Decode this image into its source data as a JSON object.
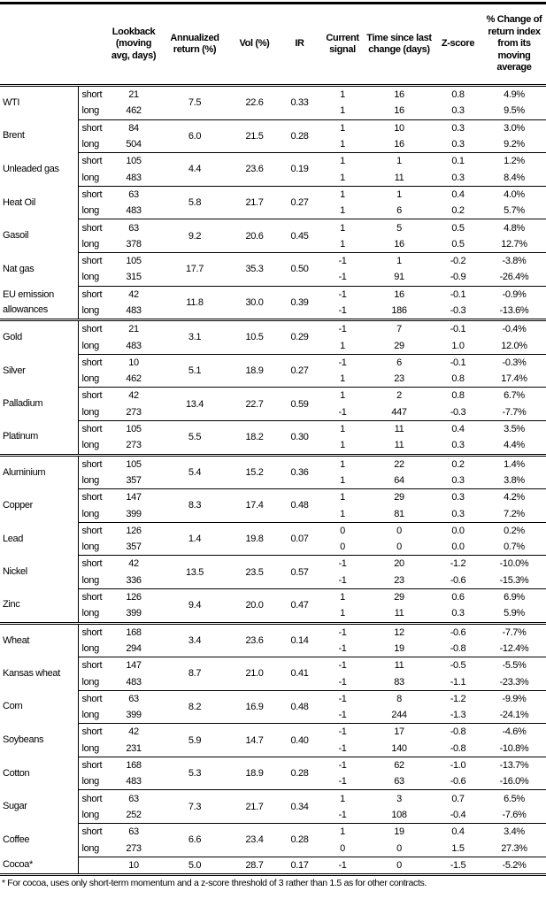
{
  "headers": [
    "",
    "",
    "Lookback (moving avg, days)",
    "Annualized return (%)",
    "Vol (%)",
    "IR",
    "Current signal",
    "Time since last change (days)",
    "Z-score",
    "% Change of return index from its moving average"
  ],
  "groups": [
    [
      {
        "name": "WTI",
        "rows": [
          {
            "type": "short",
            "lookback": "21",
            "signal": "1",
            "time": "16",
            "z": "0.8",
            "pct": "4.9%"
          },
          {
            "type": "long",
            "lookback": "462",
            "signal": "1",
            "time": "16",
            "z": "0.3",
            "pct": "9.5%"
          }
        ],
        "ann": "7.5",
        "vol": "22.6",
        "ir": "0.33"
      },
      {
        "name": "Brent",
        "rows": [
          {
            "type": "short",
            "lookback": "84",
            "signal": "1",
            "time": "10",
            "z": "0.3",
            "pct": "3.0%"
          },
          {
            "type": "long",
            "lookback": "504",
            "signal": "1",
            "time": "16",
            "z": "0.3",
            "pct": "9.2%"
          }
        ],
        "ann": "6.0",
        "vol": "21.5",
        "ir": "0.28"
      },
      {
        "name": "Unleaded gas",
        "rows": [
          {
            "type": "short",
            "lookback": "105",
            "signal": "1",
            "time": "1",
            "z": "0.1",
            "pct": "1.2%"
          },
          {
            "type": "long",
            "lookback": "483",
            "signal": "1",
            "time": "11",
            "z": "0.3",
            "pct": "8.4%"
          }
        ],
        "ann": "4.4",
        "vol": "23.6",
        "ir": "0.19"
      },
      {
        "name": "Heat Oil",
        "rows": [
          {
            "type": "short",
            "lookback": "63",
            "signal": "1",
            "time": "1",
            "z": "0.4",
            "pct": "4.0%"
          },
          {
            "type": "long",
            "lookback": "483",
            "signal": "1",
            "time": "6",
            "z": "0.2",
            "pct": "5.7%"
          }
        ],
        "ann": "5.8",
        "vol": "21.7",
        "ir": "0.27"
      },
      {
        "name": "Gasoil",
        "rows": [
          {
            "type": "short",
            "lookback": "63",
            "signal": "1",
            "time": "5",
            "z": "0.5",
            "pct": "4.8%"
          },
          {
            "type": "long",
            "lookback": "378",
            "signal": "1",
            "time": "16",
            "z": "0.5",
            "pct": "12.7%"
          }
        ],
        "ann": "9.2",
        "vol": "20.6",
        "ir": "0.45"
      },
      {
        "name": "Nat gas",
        "rows": [
          {
            "type": "short",
            "lookback": "105",
            "signal": "-1",
            "time": "1",
            "z": "-0.2",
            "pct": "-3.8%"
          },
          {
            "type": "long",
            "lookback": "315",
            "signal": "-1",
            "time": "91",
            "z": "-0.9",
            "pct": "-26.4%"
          }
        ],
        "ann": "17.7",
        "vol": "35.3",
        "ir": "0.50"
      },
      {
        "name": "EU emission allowances",
        "rows": [
          {
            "type": "short",
            "lookback": "42",
            "signal": "-1",
            "time": "16",
            "z": "-0.1",
            "pct": "-0.9%"
          },
          {
            "type": "long",
            "lookback": "483",
            "signal": "-1",
            "time": "186",
            "z": "-0.3",
            "pct": "-13.6%"
          }
        ],
        "ann": "11.8",
        "vol": "30.0",
        "ir": "0.39"
      }
    ],
    [
      {
        "name": "Gold",
        "rows": [
          {
            "type": "short",
            "lookback": "21",
            "signal": "-1",
            "time": "7",
            "z": "-0.1",
            "pct": "-0.4%"
          },
          {
            "type": "long",
            "lookback": "483",
            "signal": "1",
            "time": "29",
            "z": "1.0",
            "pct": "12.0%"
          }
        ],
        "ann": "3.1",
        "vol": "10.5",
        "ir": "0.29"
      },
      {
        "name": "Silver",
        "rows": [
          {
            "type": "short",
            "lookback": "10",
            "signal": "-1",
            "time": "6",
            "z": "-0.1",
            "pct": "-0.3%"
          },
          {
            "type": "long",
            "lookback": "462",
            "signal": "1",
            "time": "23",
            "z": "0.8",
            "pct": "17.4%"
          }
        ],
        "ann": "5.1",
        "vol": "18.9",
        "ir": "0.27"
      },
      {
        "name": "Palladium",
        "rows": [
          {
            "type": "short",
            "lookback": "42",
            "signal": "1",
            "time": "2",
            "z": "0.8",
            "pct": "6.7%"
          },
          {
            "type": "long",
            "lookback": "273",
            "signal": "-1",
            "time": "447",
            "z": "-0.3",
            "pct": "-7.7%"
          }
        ],
        "ann": "13.4",
        "vol": "22.7",
        "ir": "0.59"
      },
      {
        "name": "Platinum",
        "rows": [
          {
            "type": "short",
            "lookback": "105",
            "signal": "1",
            "time": "11",
            "z": "0.4",
            "pct": "3.5%"
          },
          {
            "type": "long",
            "lookback": "273",
            "signal": "1",
            "time": "11",
            "z": "0.3",
            "pct": "4.4%"
          }
        ],
        "ann": "5.5",
        "vol": "18.2",
        "ir": "0.30"
      }
    ],
    [
      {
        "name": "Aluminium",
        "rows": [
          {
            "type": "short",
            "lookback": "105",
            "signal": "1",
            "time": "22",
            "z": "0.2",
            "pct": "1.4%"
          },
          {
            "type": "long",
            "lookback": "357",
            "signal": "1",
            "time": "64",
            "z": "0.3",
            "pct": "3.8%"
          }
        ],
        "ann": "5.4",
        "vol": "15.2",
        "ir": "0.36"
      },
      {
        "name": "Copper",
        "rows": [
          {
            "type": "short",
            "lookback": "147",
            "signal": "1",
            "time": "29",
            "z": "0.3",
            "pct": "4.2%"
          },
          {
            "type": "long",
            "lookback": "399",
            "signal": "1",
            "time": "81",
            "z": "0.3",
            "pct": "7.2%"
          }
        ],
        "ann": "8.3",
        "vol": "17.4",
        "ir": "0.48"
      },
      {
        "name": "Lead",
        "rows": [
          {
            "type": "short",
            "lookback": "126",
            "signal": "0",
            "time": "0",
            "z": "0.0",
            "pct": "0.2%"
          },
          {
            "type": "long",
            "lookback": "357",
            "signal": "0",
            "time": "0",
            "z": "0.0",
            "pct": "0.7%"
          }
        ],
        "ann": "1.4",
        "vol": "19.8",
        "ir": "0.07"
      },
      {
        "name": "Nickel",
        "rows": [
          {
            "type": "short",
            "lookback": "42",
            "signal": "-1",
            "time": "20",
            "z": "-1.2",
            "pct": "-10.0%"
          },
          {
            "type": "long",
            "lookback": "336",
            "signal": "-1",
            "time": "23",
            "z": "-0.6",
            "pct": "-15.3%"
          }
        ],
        "ann": "13.5",
        "vol": "23.5",
        "ir": "0.57"
      },
      {
        "name": "Zinc",
        "rows": [
          {
            "type": "short",
            "lookback": "126",
            "signal": "1",
            "time": "29",
            "z": "0.6",
            "pct": "6.9%"
          },
          {
            "type": "long",
            "lookback": "399",
            "signal": "1",
            "time": "11",
            "z": "0.3",
            "pct": "5.9%"
          }
        ],
        "ann": "9.4",
        "vol": "20.0",
        "ir": "0.47"
      }
    ],
    [
      {
        "name": "Wheat",
        "rows": [
          {
            "type": "short",
            "lookback": "168",
            "signal": "-1",
            "time": "12",
            "z": "-0.6",
            "pct": "-7.7%"
          },
          {
            "type": "long",
            "lookback": "294",
            "signal": "-1",
            "time": "19",
            "z": "-0.8",
            "pct": "-12.4%"
          }
        ],
        "ann": "3.4",
        "vol": "23.6",
        "ir": "0.14"
      },
      {
        "name": "Kansas wheat",
        "rows": [
          {
            "type": "short",
            "lookback": "147",
            "signal": "-1",
            "time": "11",
            "z": "-0.5",
            "pct": "-5.5%"
          },
          {
            "type": "long",
            "lookback": "483",
            "signal": "-1",
            "time": "83",
            "z": "-1.1",
            "pct": "-23.3%"
          }
        ],
        "ann": "8.7",
        "vol": "21.0",
        "ir": "0.41"
      },
      {
        "name": "Corn",
        "rows": [
          {
            "type": "short",
            "lookback": "63",
            "signal": "-1",
            "time": "8",
            "z": "-1.2",
            "pct": "-9.9%"
          },
          {
            "type": "long",
            "lookback": "399",
            "signal": "-1",
            "time": "244",
            "z": "-1.3",
            "pct": "-24.1%"
          }
        ],
        "ann": "8.2",
        "vol": "16.9",
        "ir": "0.48"
      },
      {
        "name": "Soybeans",
        "rows": [
          {
            "type": "short",
            "lookback": "42",
            "signal": "-1",
            "time": "17",
            "z": "-0.8",
            "pct": "-4.6%"
          },
          {
            "type": "long",
            "lookback": "231",
            "signal": "-1",
            "time": "140",
            "z": "-0.8",
            "pct": "-10.8%"
          }
        ],
        "ann": "5.9",
        "vol": "14.7",
        "ir": "0.40"
      },
      {
        "name": "Cotton",
        "rows": [
          {
            "type": "short",
            "lookback": "168",
            "signal": "-1",
            "time": "62",
            "z": "-1.0",
            "pct": "-13.7%"
          },
          {
            "type": "long",
            "lookback": "483",
            "signal": "-1",
            "time": "63",
            "z": "-0.6",
            "pct": "-16.0%"
          }
        ],
        "ann": "5.3",
        "vol": "18.9",
        "ir": "0.28"
      },
      {
        "name": "Sugar",
        "rows": [
          {
            "type": "short",
            "lookback": "63",
            "signal": "1",
            "time": "3",
            "z": "0.7",
            "pct": "6.5%"
          },
          {
            "type": "long",
            "lookback": "252",
            "signal": "-1",
            "time": "108",
            "z": "-0.4",
            "pct": "-7.6%"
          }
        ],
        "ann": "7.3",
        "vol": "21.7",
        "ir": "0.34"
      },
      {
        "name": "Coffee",
        "rows": [
          {
            "type": "short",
            "lookback": "63",
            "signal": "1",
            "time": "19",
            "z": "0.4",
            "pct": "3.4%"
          },
          {
            "type": "long",
            "lookback": "273",
            "signal": "0",
            "time": "0",
            "z": "1.5",
            "pct": "27.3%"
          }
        ],
        "ann": "6.6",
        "vol": "23.4",
        "ir": "0.28"
      },
      {
        "name": "Cocoa*",
        "rows": [
          {
            "type": "",
            "lookback": "10",
            "signal": "-1",
            "time": "0",
            "z": "-1.5",
            "pct": "-5.2%"
          }
        ],
        "ann": "5.0",
        "vol": "28.7",
        "ir": "0.17"
      }
    ]
  ],
  "footnote": "* For cocoa, uses only short-term momentum and a z-score threshold of 3 rather than 1.5 as for other contracts."
}
